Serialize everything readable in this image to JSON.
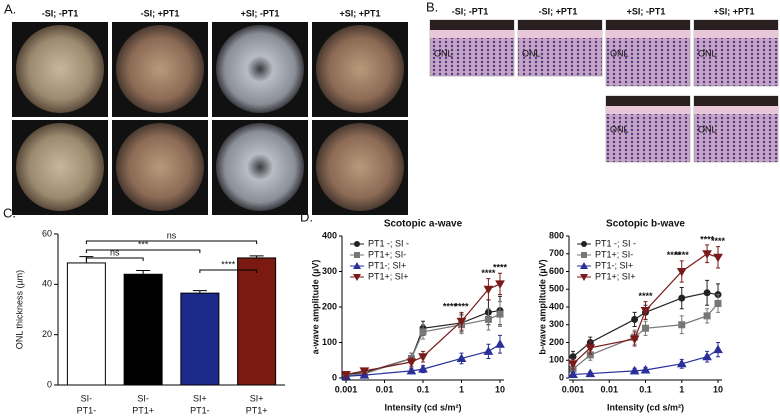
{
  "panels": {
    "a": {
      "label": "A.",
      "columns": [
        "-SI; -PT1",
        "-SI; +PT1",
        "+SI; -PT1",
        "+SI; +PT1"
      ]
    },
    "b": {
      "label": "B.",
      "columns": [
        "-SI; -PT1",
        "-SI; +PT1",
        "+SI; -PT1",
        "+SI; +PT1"
      ],
      "layer_label": "ONL"
    }
  },
  "chart_data": [
    {
      "type": "bar",
      "label": "C.",
      "ylabel": "ONL thickness (µm)",
      "categories": [
        [
          "SI-",
          "PT1-"
        ],
        [
          "SI-",
          "PT1+"
        ],
        [
          "SI+",
          "PT1-"
        ],
        [
          "SI+",
          "PT1+"
        ]
      ],
      "values": [
        48.5,
        44,
        36.5,
        50.5
      ],
      "errors": [
        2.5,
        1.5,
        1,
        0.8
      ],
      "colors": [
        "#ffffff",
        "#000000",
        "#1c2a8c",
        "#7a1a10"
      ],
      "ylim": [
        0,
        60
      ],
      "yticks": [
        0,
        20,
        40,
        60
      ],
      "annotations": [
        {
          "text": "ns",
          "groups": [
            0,
            3
          ]
        },
        {
          "text": "***",
          "groups": [
            0,
            2
          ]
        },
        {
          "text": "ns",
          "groups": [
            0,
            1
          ]
        },
        {
          "text": "****",
          "groups": [
            2,
            3
          ]
        }
      ]
    },
    {
      "type": "line",
      "label": "D.",
      "title": "Scotopic a-wave",
      "xlabel": "Intensity (cd s/m²)",
      "ylabel": "a-wave amplitude (µV)",
      "log_x": true,
      "x": [
        0.001,
        0.003,
        0.05,
        0.1,
        1,
        5,
        10
      ],
      "xlim": [
        0.001,
        10
      ],
      "xticks": [
        0.001,
        0.01,
        0.1,
        1,
        10
      ],
      "ylim": [
        0,
        400
      ],
      "yticks": [
        0,
        100,
        200,
        300,
        400
      ],
      "series": [
        {
          "name": "PT1 -; SI -",
          "color": "#222222",
          "marker": "circle",
          "values": [
            10,
            15,
            55,
            140,
            155,
            185,
            190
          ],
          "errors": [
            4,
            5,
            15,
            20,
            25,
            35,
            40
          ]
        },
        {
          "name": "PT1+; SI-",
          "color": "#777777",
          "marker": "square",
          "values": [
            8,
            12,
            55,
            130,
            150,
            165,
            180
          ],
          "errors": [
            4,
            5,
            15,
            20,
            25,
            30,
            35
          ]
        },
        {
          "name": "PT1-; SI+",
          "color": "#2a2f9a",
          "marker": "triangle",
          "values": [
            5,
            8,
            20,
            25,
            55,
            75,
            95
          ],
          "errors": [
            3,
            4,
            8,
            10,
            15,
            20,
            25
          ]
        },
        {
          "name": "PT1+; SI+",
          "color": "#7a1a1a",
          "marker": "triangle-down",
          "values": [
            10,
            20,
            45,
            60,
            160,
            250,
            265
          ],
          "errors": [
            4,
            6,
            12,
            15,
            25,
            30,
            30
          ]
        }
      ],
      "annotations": [
        {
          "text": "****",
          "x": 0.5
        },
        {
          "text": "****",
          "x": 1
        },
        {
          "text": "****",
          "x": 5
        },
        {
          "text": "****",
          "x": 10
        }
      ]
    },
    {
      "type": "line",
      "title": "Scotopic b-wave",
      "xlabel": "Intensity (cd s/m²)",
      "ylabel": "b-wave amplitude (µV)",
      "log_x": true,
      "x": [
        0.001,
        0.003,
        0.05,
        0.1,
        1,
        5,
        10
      ],
      "xlim": [
        0.001,
        10
      ],
      "xticks": [
        0.001,
        0.01,
        0.1,
        1,
        10
      ],
      "ylim": [
        0,
        800
      ],
      "yticks": [
        0,
        100,
        200,
        300,
        400,
        500,
        600,
        700,
        800
      ],
      "series": [
        {
          "name": "PT1 -; SI -",
          "color": "#222222",
          "marker": "circle",
          "values": [
            120,
            200,
            330,
            370,
            450,
            480,
            470
          ],
          "errors": [
            30,
            30,
            40,
            40,
            60,
            70,
            60
          ]
        },
        {
          "name": "PT1+; SI-",
          "color": "#777777",
          "marker": "square",
          "values": [
            50,
            130,
            230,
            280,
            300,
            350,
            420
          ],
          "errors": [
            25,
            30,
            40,
            40,
            50,
            40,
            50
          ]
        },
        {
          "name": "PT1-; SI+",
          "color": "#2a2f9a",
          "marker": "triangle",
          "values": [
            20,
            25,
            40,
            45,
            80,
            120,
            160
          ],
          "errors": [
            10,
            10,
            15,
            15,
            25,
            30,
            40
          ]
        },
        {
          "name": "PT1+; SI+",
          "color": "#7a1a1a",
          "marker": "triangle-down",
          "values": [
            80,
            170,
            220,
            380,
            600,
            700,
            680
          ],
          "errors": [
            30,
            35,
            40,
            50,
            60,
            50,
            60
          ]
        }
      ],
      "annotations": [
        {
          "text": "****",
          "x": 0.1
        },
        {
          "text": "****",
          "x": 0.6
        },
        {
          "text": "****",
          "x": 1
        },
        {
          "text": "****",
          "x": 5
        },
        {
          "text": "****",
          "x": 10
        }
      ]
    }
  ]
}
